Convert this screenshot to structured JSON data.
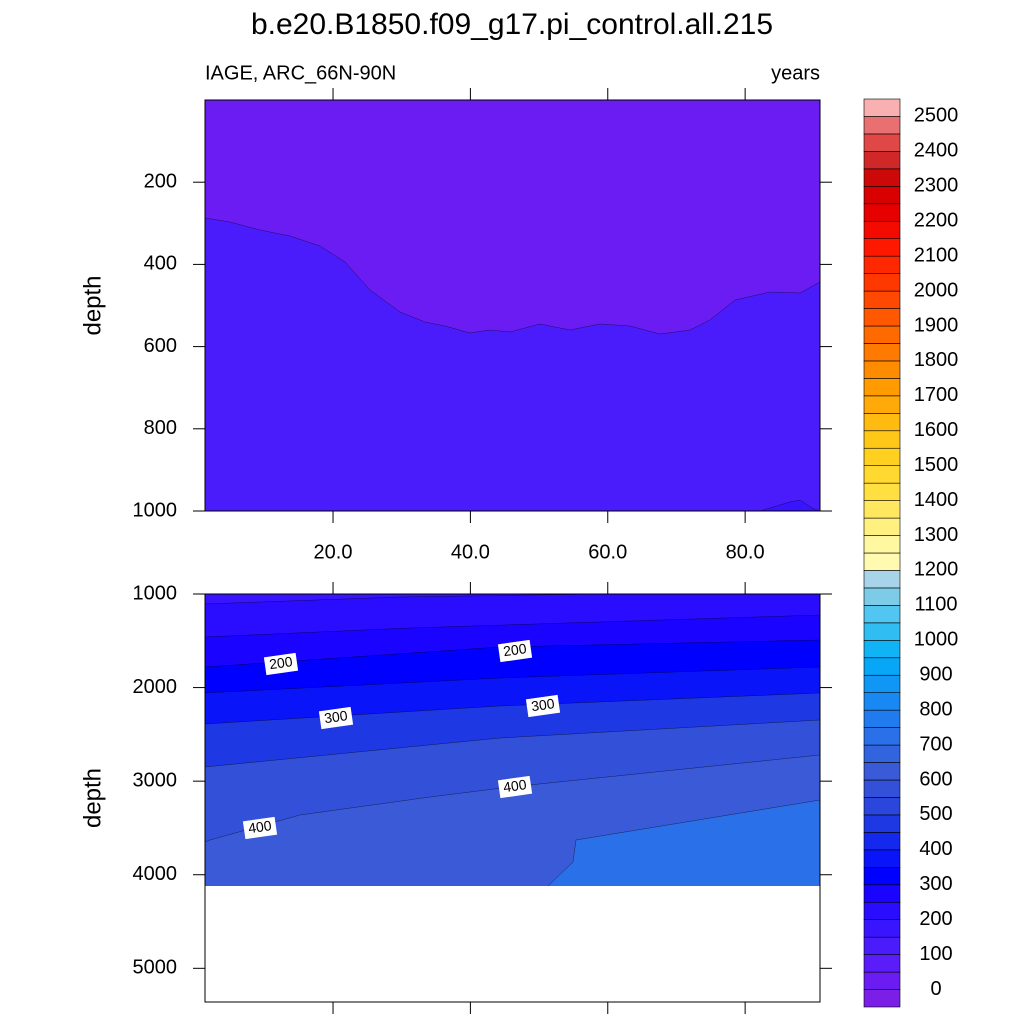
{
  "title": "b.e20.B1850.f09_g17.pi_control.all.215",
  "chart_data": [
    {
      "type": "contour",
      "left_label": "IAGE, ARC_66N-90N",
      "right_label": "years",
      "y_label": "depth",
      "xlim": [
        1.36,
        90.9
      ],
      "xticks": [
        {
          "value": 20,
          "label": "20.0"
        },
        {
          "value": 40,
          "label": "40.0"
        },
        {
          "value": 60,
          "label": "60.0"
        },
        {
          "value": 80,
          "label": "80.0"
        }
      ],
      "ylim": [
        0,
        1000
      ],
      "y_reversed": true,
      "yticks": [
        200,
        400,
        600,
        800,
        1000
      ]
    },
    {
      "type": "contour",
      "y_label": "depth",
      "xlim": [
        1.36,
        90.9
      ],
      "xticks": [
        20,
        40,
        60,
        80
      ],
      "ylim": [
        1000,
        5360
      ],
      "y_reversed": true,
      "yticks": [
        1000,
        2000,
        3000,
        4000,
        5000
      ],
      "contour_labels": [
        200,
        200,
        300,
        300,
        400,
        400
      ]
    }
  ],
  "colorbar": {
    "labels": [
      0,
      100,
      200,
      300,
      400,
      500,
      600,
      700,
      800,
      900,
      1000,
      1100,
      1200,
      1300,
      1400,
      1500,
      1600,
      1700,
      1800,
      1900,
      2000,
      2100,
      2200,
      2300,
      2400,
      2500
    ],
    "colors": [
      "#7b1fe6",
      "#6a1cf2",
      "#5a1cf8",
      "#4a1cfc",
      "#3814ff",
      "#2a0cff",
      "#1a04ff",
      "#0000ff",
      "#0a14f8",
      "#1428ee",
      "#1e38e4",
      "#2a46dc",
      "#3250d8",
      "#3a5ad8",
      "#3264e0",
      "#2a70e8",
      "#207cee",
      "#1888f2",
      "#1096f4",
      "#08a6f6",
      "#10b4f6",
      "#30bef2",
      "#50c6f0",
      "#7ccce8",
      "#a8d4ea",
      "#fffab0",
      "#fff8a0",
      "#fff080",
      "#ffe860",
      "#ffe040",
      "#ffd830",
      "#ffd020",
      "#ffc818",
      "#ffbb10",
      "#ffaa08",
      "#ff9a00",
      "#ff8c00",
      "#ff7a00",
      "#ff6a00",
      "#ff5800",
      "#ff4800",
      "#ff3800",
      "#ff2800",
      "#ff1800",
      "#f50a00",
      "#e60000",
      "#d80000",
      "#cc0808",
      "#d02828",
      "#e04848",
      "#e87070",
      "#f8b0b0"
    ]
  }
}
